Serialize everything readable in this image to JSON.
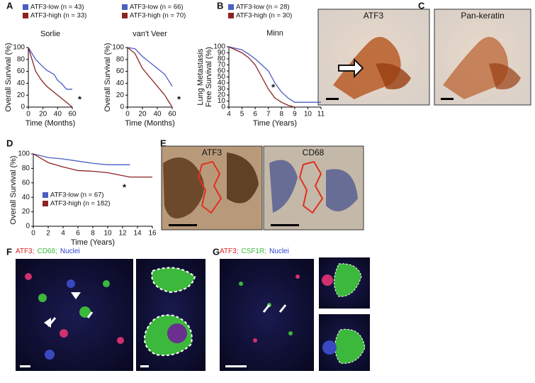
{
  "chart_data": [
    {
      "type": "line",
      "title": "Sorlie",
      "xlabel": "Time (Months)",
      "ylabel": "Overall Survival (%)",
      "annotation": "*",
      "series": [
        {
          "name": "ATF3-low (n = 43)",
          "color": "#4a5fc1",
          "x": [
            0,
            10,
            18,
            25,
            35,
            40,
            45,
            52,
            60
          ],
          "values": [
            100,
            80,
            70,
            62,
            55,
            45,
            40,
            30,
            30
          ]
        },
        {
          "name": "ATF3-high (n = 33)",
          "color": "#8b2323",
          "x": [
            0,
            5,
            10,
            18,
            25,
            35,
            42,
            48,
            55,
            60
          ],
          "values": [
            100,
            80,
            60,
            45,
            35,
            25,
            18,
            12,
            5,
            0
          ]
        }
      ],
      "xlim": [
        0,
        60
      ],
      "xticks": [
        0,
        20,
        40,
        60
      ],
      "ylim": [
        0,
        100
      ],
      "yticks": [
        0,
        20,
        40,
        60,
        80,
        100
      ]
    },
    {
      "type": "line",
      "title": "van't Veer",
      "xlabel": "Time (Months)",
      "ylabel": "Overall Survival (%)",
      "annotation": "*",
      "series": [
        {
          "name": "ATF3-low (n = 66)",
          "color": "#4a5fc1",
          "x": [
            0,
            10,
            20,
            30,
            40,
            50,
            55,
            60
          ],
          "values": [
            100,
            98,
            85,
            75,
            65,
            55,
            45,
            35
          ]
        },
        {
          "name": "ATF3-high (n = 70)",
          "color": "#8b2323",
          "x": [
            0,
            10,
            20,
            30,
            40,
            50,
            55,
            60
          ],
          "values": [
            100,
            90,
            65,
            50,
            35,
            20,
            10,
            0
          ]
        }
      ],
      "xlim": [
        0,
        60
      ],
      "xticks": [
        0,
        20,
        40,
        60
      ],
      "ylim": [
        0,
        100
      ],
      "yticks": [
        0,
        20,
        40,
        60,
        80,
        100
      ]
    },
    {
      "type": "line",
      "title": "Minn",
      "xlabel": "Time (Years)",
      "ylabel": [
        "Lung Metastasis",
        "Free Survival (%)"
      ],
      "annotation": "*",
      "series": [
        {
          "name": "ATF3-low (n = 28)",
          "color": "#4a5fc1",
          "x": [
            4,
            5,
            5.5,
            6,
            6.5,
            7,
            7.5,
            8,
            8.5,
            9,
            11
          ],
          "values": [
            100,
            95,
            88,
            80,
            70,
            60,
            40,
            25,
            15,
            8,
            8
          ]
        },
        {
          "name": "ATF3-high (n = 30)",
          "color": "#8b2323",
          "x": [
            4,
            5,
            5.5,
            6,
            6.5,
            7,
            7.5,
            8,
            8.5,
            9
          ],
          "values": [
            100,
            90,
            82,
            70,
            50,
            30,
            15,
            8,
            3,
            0
          ]
        }
      ],
      "xlim": [
        4,
        11
      ],
      "xticks": [
        4,
        5,
        6,
        7,
        8,
        9,
        10,
        11
      ],
      "ylim": [
        0,
        100
      ],
      "yticks": [
        0,
        10,
        20,
        30,
        40,
        50,
        60,
        70,
        80,
        90,
        100
      ]
    },
    {
      "type": "line",
      "xlabel": "Time (Years)",
      "ylabel": "Overall Survival (%)",
      "annotation": "*",
      "series": [
        {
          "name": "ATF3-low (n = 67)",
          "color": "#4a5fc1",
          "x": [
            0,
            2,
            4,
            6,
            8,
            10,
            13
          ],
          "values": [
            100,
            95,
            93,
            90,
            87,
            85,
            85
          ]
        },
        {
          "name": "ATF3-high (n = 182)",
          "color": "#8b2323",
          "x": [
            0,
            2,
            4,
            6,
            8,
            10,
            12,
            13,
            16
          ],
          "values": [
            100,
            88,
            82,
            77,
            76,
            74,
            70,
            68,
            68
          ]
        }
      ],
      "xlim": [
        0,
        16
      ],
      "xticks": [
        0,
        2,
        4,
        6,
        8,
        10,
        12,
        14,
        16
      ],
      "ylim": [
        0,
        100
      ],
      "yticks": [
        0,
        20,
        40,
        60,
        80,
        100
      ]
    }
  ],
  "figure": {
    "panel_labels": [
      "A",
      "B",
      "C",
      "D",
      "E",
      "F",
      "G"
    ],
    "c_labels": [
      "ATF3",
      "Pan-keratin"
    ],
    "e_labels": [
      "ATF3",
      "CD68"
    ],
    "f_stain": [
      {
        "text": "ATF3;",
        "color": "#e02020"
      },
      {
        "text": "CD68;",
        "color": "#3cb83c"
      },
      {
        "text": "Nuclei",
        "color": "#2a3fd0"
      }
    ],
    "g_stain": [
      {
        "text": "ATF3;",
        "color": "#e02020"
      },
      {
        "text": "CSF1R;",
        "color": "#3cb83c"
      },
      {
        "text": "Nuclei",
        "color": "#2a3fd0"
      }
    ]
  }
}
